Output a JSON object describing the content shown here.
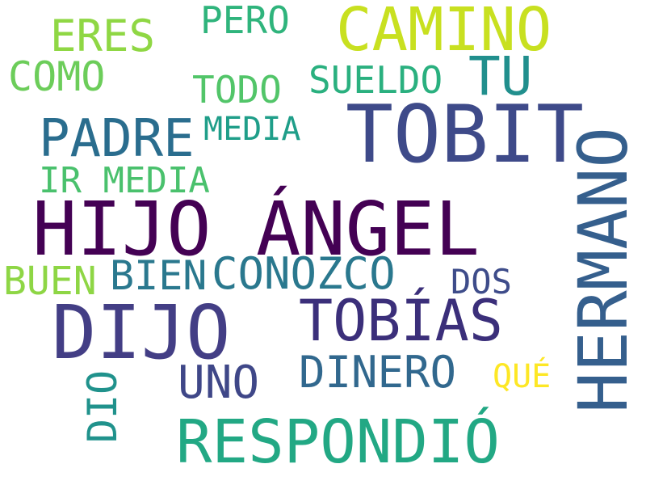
{
  "words": {
    "angel": {
      "text": "HIJO ÁNGEL",
      "color": "#440154"
    },
    "tobit": {
      "text": "TOBIT",
      "color": "#3e4a89"
    },
    "hermano": {
      "text": "HERMANO",
      "color": "#355f8d"
    },
    "dijo": {
      "text": "DIJO",
      "color": "#433e85"
    },
    "tobias": {
      "text": "TOBÍAS",
      "color": "#3b2f7a"
    },
    "respondio": {
      "text": "RESPONDIÓ",
      "color": "#22a884"
    },
    "camino": {
      "text": "CAMINO",
      "color": "#c8e020"
    },
    "padre": {
      "text": "PADRE",
      "color": "#2a6d8e"
    },
    "bien": {
      "text": "BIEN",
      "color": "#2a788e"
    },
    "conozco": {
      "text": "CONOZCO",
      "color": "#2a788e"
    },
    "dinero": {
      "text": "DINERO",
      "color": "#31688e"
    },
    "uno": {
      "text": "UNO",
      "color": "#3f4788"
    },
    "tu": {
      "text": "TU",
      "color": "#218f8d"
    },
    "sueldo": {
      "text": "SUELDO",
      "color": "#2ab07f"
    },
    "eres": {
      "text": "ERES",
      "color": "#8fd744"
    },
    "pero": {
      "text": "PERO",
      "color": "#2fb47c"
    },
    "como": {
      "text": "COMO",
      "color": "#6ccd5a"
    },
    "todo": {
      "text": "TODO",
      "color": "#52c569"
    },
    "media1": {
      "text": "MEDIA",
      "color": "#1f9e89"
    },
    "irmedia": {
      "text": "IR MEDIA",
      "color": "#4ac16d"
    },
    "buen": {
      "text": "BUEN",
      "color": "#8ed645"
    },
    "dos": {
      "text": "DOS",
      "color": "#3e4c8a"
    },
    "que": {
      "text": "QUÉ",
      "color": "#fde725"
    },
    "dio": {
      "text": "DIO",
      "color": "#20928c"
    }
  }
}
